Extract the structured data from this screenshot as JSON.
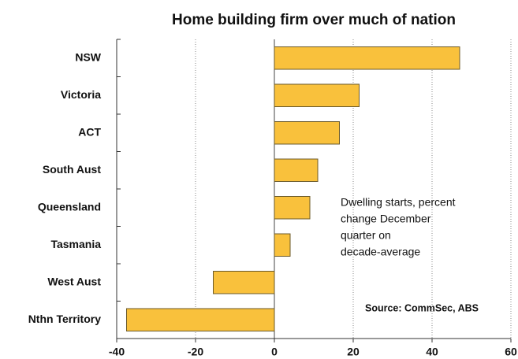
{
  "chart_data": {
    "type": "barh",
    "title": "Home building firm over much of nation",
    "categories": [
      "NSW",
      "Victoria",
      "ACT",
      "South Aust",
      "Queensland",
      "Tasmania",
      "West Aust",
      "Nthn Territory"
    ],
    "values": [
      47,
      21.5,
      16.5,
      11,
      9,
      4,
      -15.5,
      -37.5
    ],
    "color": "#f9c13c",
    "xlim": [
      -40,
      60
    ],
    "xticks": [
      -40,
      -20,
      0,
      20,
      40,
      60
    ],
    "grid": true,
    "annotation": [
      "Dwelling starts, percent",
      "change December",
      "quarter on",
      "decade-average"
    ],
    "source": "Source: CommSec, ABS"
  }
}
